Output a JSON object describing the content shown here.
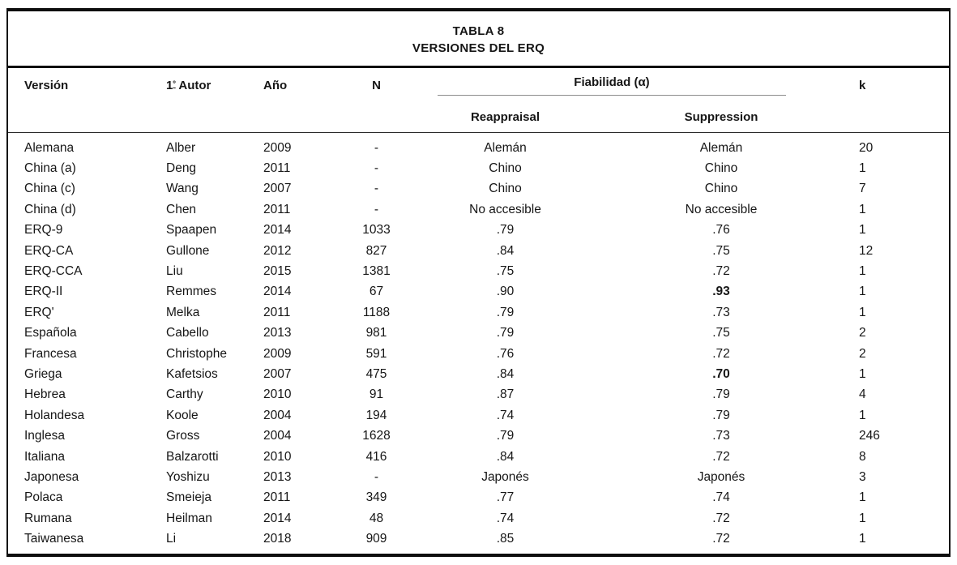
{
  "title": {
    "line1": "TABLA 8",
    "line2": "VERSIONES DEL ERQ"
  },
  "columns": {
    "version": "Versión",
    "autor_num": "1",
    "autor_ord": "º",
    "autor_rest": " Autor",
    "ano": "Año",
    "n": "N",
    "fiabilidad": "Fiabilidad (α)",
    "reappraisal": "Reappraisal",
    "suppression": "Suppression",
    "k": "k"
  },
  "table": {
    "rows": [
      {
        "version": "Alemana",
        "autor": "Alber",
        "ano": "2009",
        "n": "-",
        "reappraisal": "Alemán",
        "suppression": "Alemán",
        "k": "20"
      },
      {
        "version": "China (a)",
        "autor": "Deng",
        "ano": "2011",
        "n": "-",
        "reappraisal": "Chino",
        "suppression": "Chino",
        "k": "1"
      },
      {
        "version": "China (c)",
        "autor": "Wang",
        "ano": "2007",
        "n": "-",
        "reappraisal": "Chino",
        "suppression": "Chino",
        "k": "7"
      },
      {
        "version": "China (d)",
        "autor": "Chen",
        "ano": "2011",
        "n": "-",
        "reappraisal": "No accesible",
        "suppression": "No accesible",
        "k": "1"
      },
      {
        "version": "ERQ-9",
        "autor": "Spaapen",
        "ano": "2014",
        "n": "1033",
        "reappraisal": ".79",
        "suppression": ".76",
        "k": "1"
      },
      {
        "version": "ERQ-CA",
        "autor": "Gullone",
        "ano": "2012",
        "n": "827",
        "reappraisal": ".84",
        "suppression": ".75",
        "k": "12"
      },
      {
        "version": "ERQ-CCA",
        "autor": "Liu",
        "ano": "2015",
        "n": "1381",
        "reappraisal": ".75",
        "suppression": ".72",
        "k": "1"
      },
      {
        "version": "ERQ-II",
        "autor": "Remmes",
        "ano": "2014",
        "n": "67",
        "reappraisal": ".90",
        "suppression": ".93",
        "k": "1",
        "suppression_bold": true
      },
      {
        "version": "ERQ'",
        "autor": "Melka",
        "ano": "2011",
        "n": "1188",
        "reappraisal": ".79",
        "suppression": ".73",
        "k": "1"
      },
      {
        "version": "Española",
        "autor": "Cabello",
        "ano": "2013",
        "n": "981",
        "reappraisal": ".79",
        "suppression": ".75",
        "k": "2"
      },
      {
        "version": "Francesa",
        "autor": "Christophe",
        "ano": "2009",
        "n": "591",
        "reappraisal": ".76",
        "suppression": ".72",
        "k": "2"
      },
      {
        "version": "Griega",
        "autor": "Kafetsios",
        "ano": "2007",
        "n": "475",
        "reappraisal": ".84",
        "suppression": ".70",
        "k": "1",
        "suppression_bold": true
      },
      {
        "version": "Hebrea",
        "autor": "Carthy",
        "ano": "2010",
        "n": "91",
        "reappraisal": ".87",
        "suppression": ".79",
        "k": "4"
      },
      {
        "version": "Holandesa",
        "autor": "Koole",
        "ano": "2004",
        "n": "194",
        "reappraisal": ".74",
        "suppression": ".79",
        "k": "1"
      },
      {
        "version": "Inglesa",
        "autor": "Gross",
        "ano": "2004",
        "n": "1628",
        "reappraisal": ".79",
        "suppression": ".73",
        "k": "246"
      },
      {
        "version": "Italiana",
        "autor": "Balzarotti",
        "ano": "2010",
        "n": "416",
        "reappraisal": ".84",
        "suppression": ".72",
        "k": "8"
      },
      {
        "version": "Japonesa",
        "autor": "Yoshizu",
        "ano": "2013",
        "n": "-",
        "reappraisal": "Japonés",
        "suppression": "Japonés",
        "k": "3"
      },
      {
        "version": "Polaca",
        "autor": "Smeieja",
        "ano": "2011",
        "n": "349",
        "reappraisal": ".77",
        "suppression": ".74",
        "k": "1"
      },
      {
        "version": "Rumana",
        "autor": "Heilman",
        "ano": "2014",
        "n": "48",
        "reappraisal": ".74",
        "suppression": ".72",
        "k": "1"
      },
      {
        "version": "Taiwanesa",
        "autor": "Li",
        "ano": "2018",
        "n": "909",
        "reappraisal": ".85",
        "suppression": ".72",
        "k": "1"
      }
    ]
  }
}
